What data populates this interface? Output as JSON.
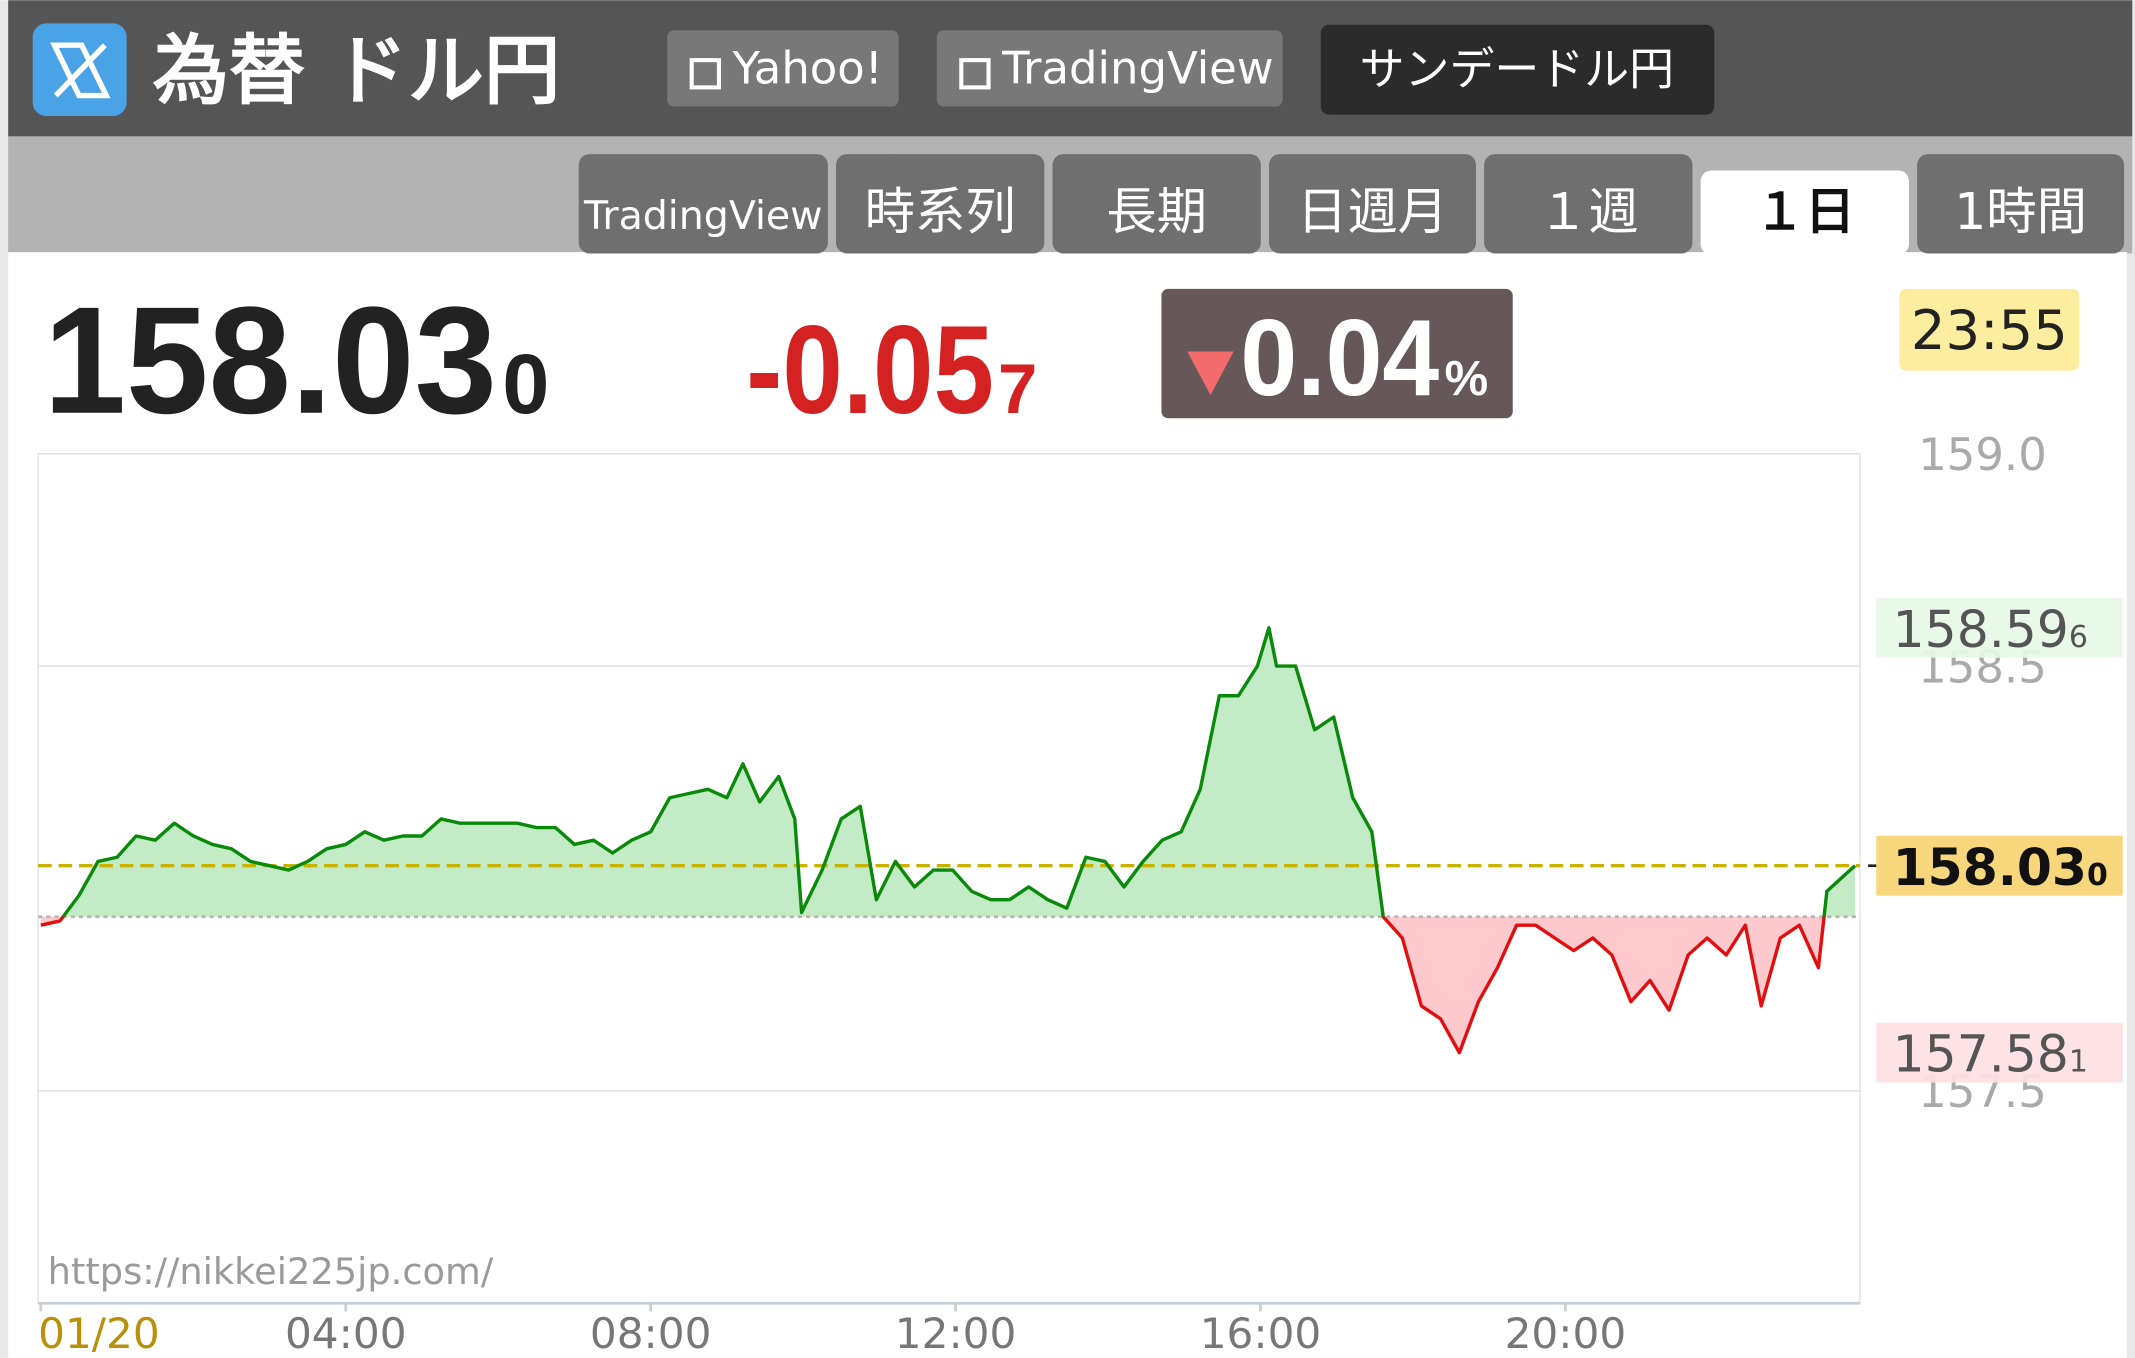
{
  "header": {
    "title": "為替 ドル円",
    "links": [
      "Yahoo!",
      "TradingView"
    ],
    "button": "サンデードル円"
  },
  "tabs": [
    "TradingView",
    "時系列",
    "長期",
    "日週月",
    "１週",
    "１日",
    "1時間"
  ],
  "active_tab": 5,
  "quote": {
    "price": "158.03",
    "price_sub": "0",
    "change": "-0.05",
    "change_sub": "7",
    "percent": "0.04",
    "percent_unit": "%",
    "time": "23:55"
  },
  "chart_data": {
    "type": "line",
    "x": [
      0,
      0.25,
      0.5,
      0.75,
      1,
      1.25,
      1.5,
      1.75,
      2,
      2.25,
      2.5,
      2.75,
      3,
      3.25,
      3.5,
      3.75,
      4,
      4.25,
      4.5,
      4.75,
      5,
      5.25,
      5.5,
      5.75,
      6,
      6.25,
      6.5,
      6.75,
      7,
      7.25,
      7.5,
      7.75,
      8,
      8.25,
      8.5,
      8.75,
      9,
      9.21,
      9.43,
      9.68,
      9.89,
      9.98,
      10.25,
      10.5,
      10.75,
      10.96,
      11.21,
      11.46,
      11.71,
      11.96,
      12.21,
      12.46,
      12.71,
      12.96,
      13.21,
      13.46,
      13.71,
      13.96,
      14.21,
      14.46,
      14.71,
      14.96,
      15.21,
      15.46,
      15.71,
      15.96,
      16.11,
      16.21,
      16.46,
      16.71,
      16.96,
      17.21,
      17.46,
      17.61,
      17.86,
      18.11,
      18.36,
      18.61,
      18.86,
      19.11,
      19.36,
      19.61,
      19.86,
      20.11,
      20.36,
      20.61,
      20.86,
      21.11,
      21.36,
      21.61,
      21.86,
      22.11,
      22.36,
      22.57,
      22.82,
      23.07,
      23.32,
      23.43,
      23.8
    ],
    "values": [
      157.89,
      157.9,
      157.96,
      158.04,
      158.05,
      158.1,
      158.09,
      158.13,
      158.1,
      158.08,
      158.07,
      158.04,
      158.03,
      158.02,
      158.04,
      158.07,
      158.08,
      158.11,
      158.09,
      158.1,
      158.1,
      158.14,
      158.13,
      158.13,
      158.13,
      158.13,
      158.12,
      158.12,
      158.08,
      158.09,
      158.06,
      158.09,
      158.11,
      158.19,
      158.2,
      158.21,
      158.19,
      158.27,
      158.18,
      158.24,
      158.14,
      157.92,
      158.02,
      158.14,
      158.17,
      157.95,
      158.04,
      157.98,
      158.02,
      158.02,
      157.97,
      157.95,
      157.95,
      157.98,
      157.95,
      157.93,
      158.05,
      158.04,
      157.98,
      158.04,
      158.09,
      158.11,
      158.21,
      158.43,
      158.43,
      158.5,
      158.59,
      158.5,
      158.5,
      158.35,
      158.38,
      158.19,
      158.11,
      157.91,
      157.86,
      157.7,
      157.67,
      157.59,
      157.71,
      157.79,
      157.89,
      157.89,
      157.86,
      157.83,
      157.86,
      157.82,
      157.71,
      157.76,
      157.69,
      157.82,
      157.86,
      157.82,
      157.89,
      157.7,
      157.86,
      157.89,
      157.79,
      157.97,
      158.03
    ],
    "color_up": "#0a8a0a",
    "color_down": "#e01010",
    "fill_up": "#c3ecc6",
    "fill_down": "#ffc9cd",
    "reference_line": 157.91,
    "xlim": [
      0,
      23.9
    ],
    "xticks": [
      {
        "value": 0,
        "label": "01/20"
      },
      {
        "value": 4,
        "label": "04:00"
      },
      {
        "value": 8,
        "label": "08:00"
      },
      {
        "value": 12,
        "label": "12:00"
      },
      {
        "value": 16,
        "label": "16:00"
      },
      {
        "value": 20,
        "label": "20:00"
      }
    ],
    "ylim": [
      157.0,
      159.0
    ],
    "yticks": [
      157.5,
      158.5,
      {
        "value": 159,
        "label": "159.0"
      }
    ],
    "grid": true,
    "last_label": [
      "158.03",
      "0"
    ],
    "high_label": [
      "158.59",
      "6"
    ],
    "low_label": [
      "157.58",
      "1"
    ],
    "watermark": "https://nikkei225jp.com/"
  }
}
